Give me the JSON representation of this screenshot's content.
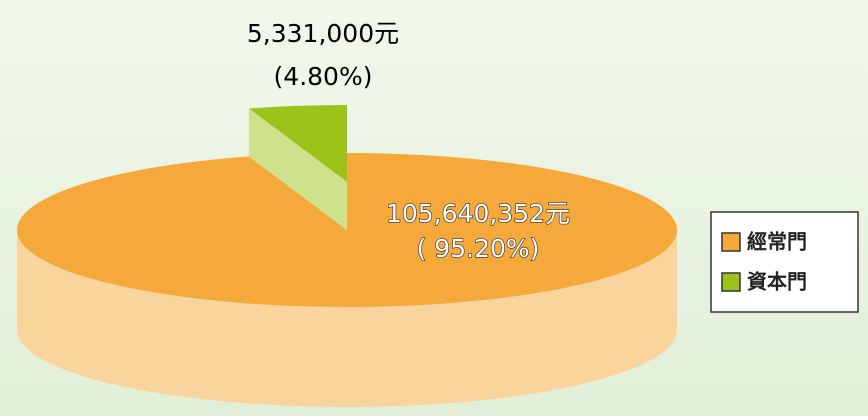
{
  "chart_data": {
    "type": "pie",
    "categories": [
      "經常門",
      "資本門"
    ],
    "values": [
      95.2,
      4.8
    ],
    "value_labels": [
      "( 95.20%)",
      "(4.80%)"
    ],
    "amounts": [
      105640352,
      5331000
    ],
    "amount_labels": [
      "105,640,352元",
      "5,331,000元"
    ],
    "colors": [
      "#f5a93a",
      "#9dc21a"
    ],
    "explode": [
      false,
      true
    ],
    "legend": "right"
  }
}
